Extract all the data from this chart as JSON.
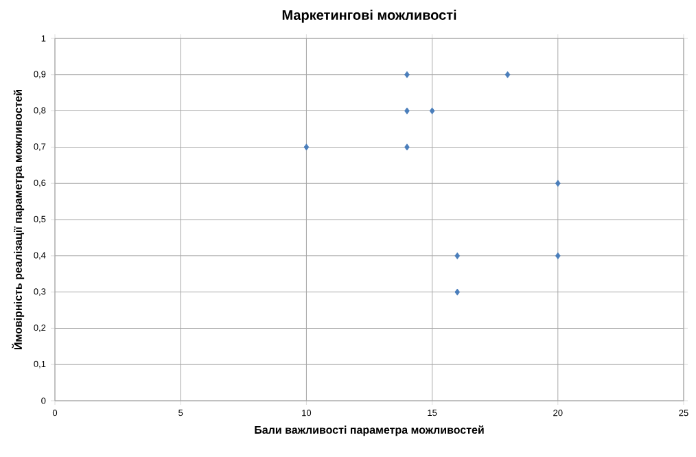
{
  "chart_data": {
    "type": "scatter",
    "title": "Маркетингові можливості",
    "xlabel": "Бали важливості параметра можливостей",
    "ylabel": "Ймовірність реалізації параметра можливостей",
    "x": [
      10,
      14,
      14,
      14,
      15,
      18,
      20,
      20,
      16,
      16
    ],
    "values": [
      0.7,
      0.9,
      0.8,
      0.7,
      0.8,
      0.9,
      0.6,
      0.4,
      0.4,
      0.3
    ],
    "color": "#4a7ebb",
    "marker": "diamond",
    "grid": true,
    "xlim": [
      0,
      25
    ],
    "xticks": [
      0,
      5,
      10,
      15,
      20,
      25
    ],
    "ylim": [
      0,
      1
    ],
    "yticks": [
      0,
      {
        "value": 0.1,
        "label": "0,1"
      },
      {
        "value": 0.2,
        "label": "0,2"
      },
      {
        "value": 0.3,
        "label": "0,3"
      },
      {
        "value": 0.4,
        "label": "0,4"
      },
      {
        "value": 0.5,
        "label": "0,5"
      },
      {
        "value": 0.6,
        "label": "0,6"
      },
      {
        "value": 0.7,
        "label": "0,7"
      },
      {
        "value": 0.8,
        "label": "0,8"
      },
      {
        "value": 0.9,
        "label": "0,9"
      },
      1
    ]
  }
}
